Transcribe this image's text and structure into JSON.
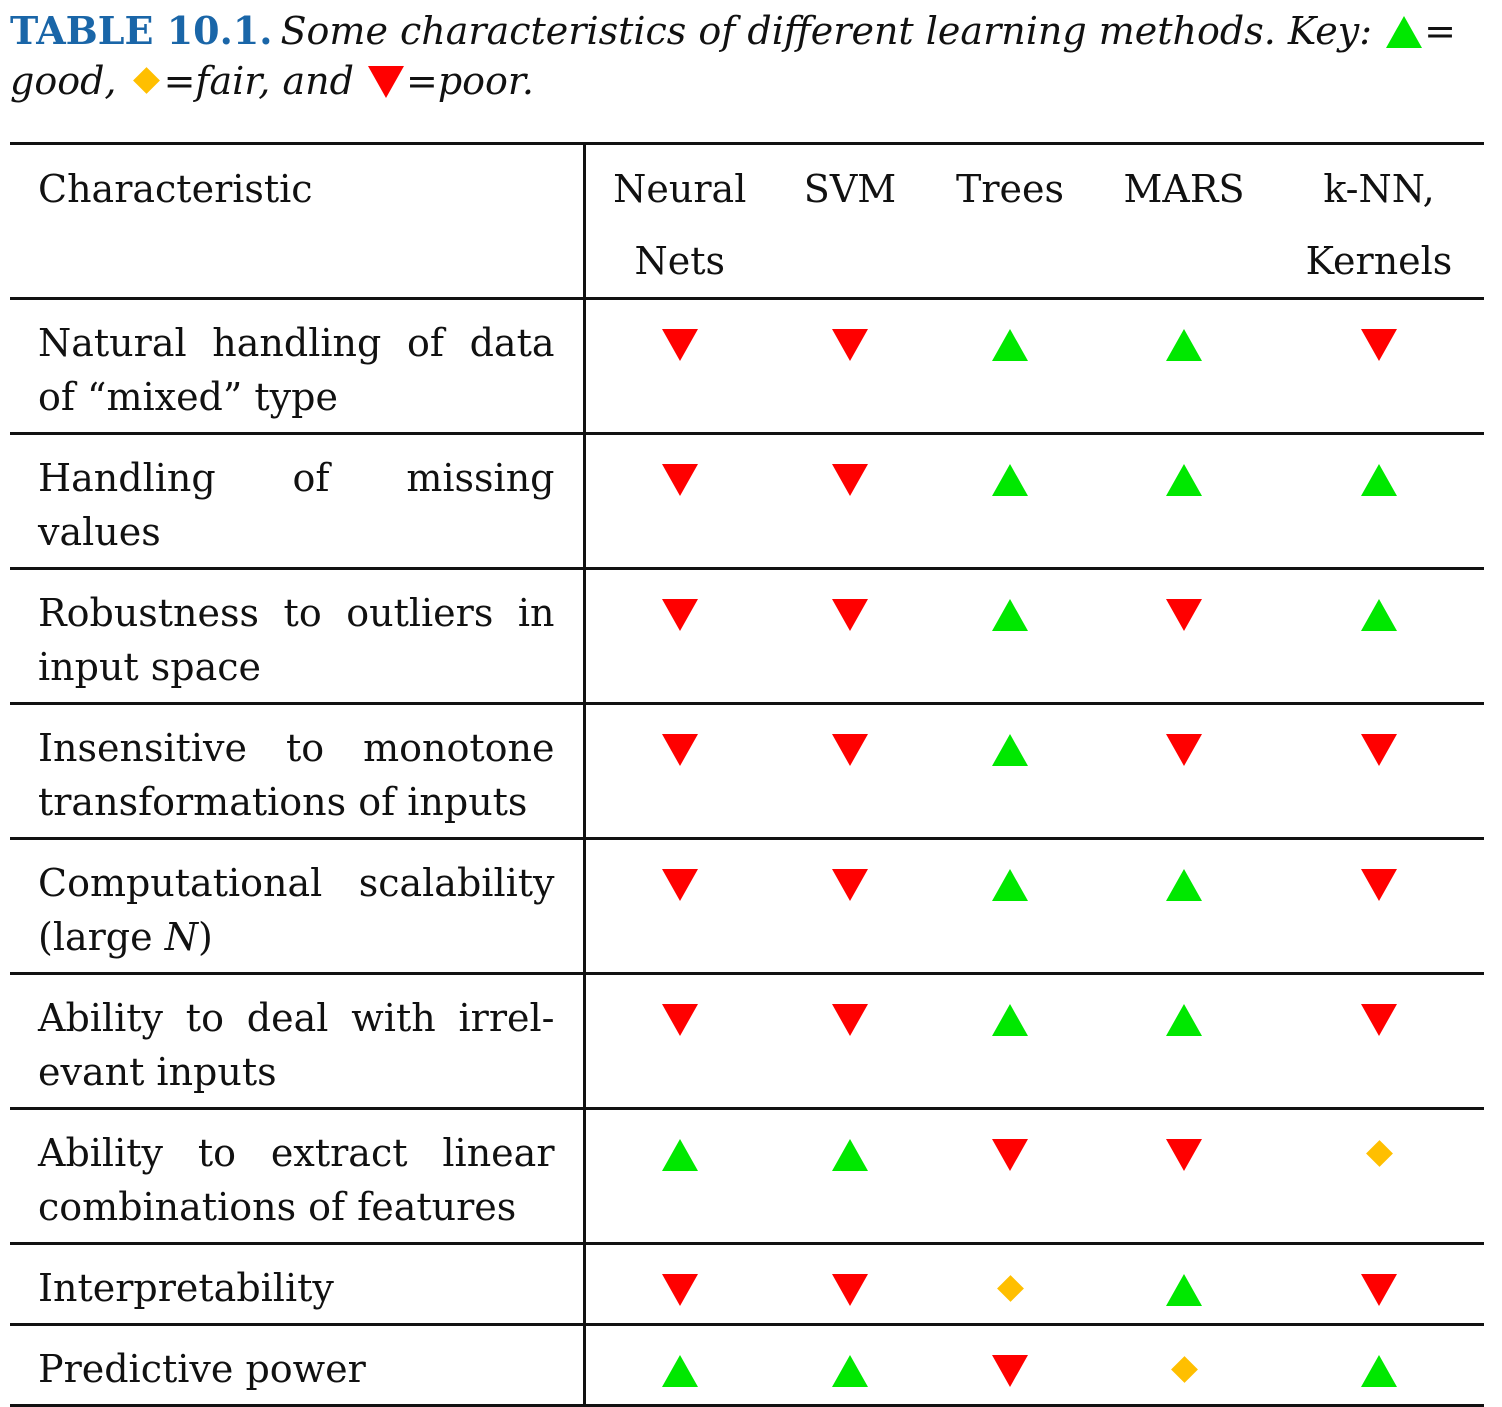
{
  "caption": {
    "label": "TABLE 10.1.",
    "text_before_key": "Some characteristics of different learning methods. Key:",
    "good_text": "= good,",
    "fair_text": "=fair, and",
    "poor_text": "=poor."
  },
  "key": {
    "good": {
      "icon": "triangle-up-icon",
      "color": "#00e800"
    },
    "fair": {
      "icon": "diamond-icon",
      "color": "#ffbf00"
    },
    "poor": {
      "icon": "triangle-down-icon",
      "color": "#ff0000"
    }
  },
  "table": {
    "headers": {
      "characteristic": "Characteristic",
      "methods": [
        {
          "line1": "Neural",
          "line2": "Nets"
        },
        {
          "line1": "SVM",
          "line2": ""
        },
        {
          "line1": "Trees",
          "line2": ""
        },
        {
          "line1": "MARS",
          "line2": ""
        },
        {
          "line1": "k-NN,",
          "line2": "Kernels"
        }
      ]
    },
    "rows": [
      {
        "characteristic": "Natural handling of data of “mixed” type",
        "ratings": [
          "poor",
          "poor",
          "good",
          "good",
          "poor"
        ]
      },
      {
        "characteristic": "Handling of missing values",
        "ratings": [
          "poor",
          "poor",
          "good",
          "good",
          "good"
        ]
      },
      {
        "characteristic": "Robustness to outliers in input space",
        "ratings": [
          "poor",
          "poor",
          "good",
          "poor",
          "good"
        ]
      },
      {
        "characteristic": "Insensitive to monotone transformations of inputs",
        "ratings": [
          "poor",
          "poor",
          "good",
          "poor",
          "poor"
        ]
      },
      {
        "characteristic_prefix": "Computational scalability (large ",
        "characteristic_var": "N",
        "characteristic_suffix": ")",
        "ratings": [
          "poor",
          "poor",
          "good",
          "good",
          "poor"
        ]
      },
      {
        "characteristic": "Ability to deal with irrel-evant inputs",
        "ratings": [
          "poor",
          "poor",
          "good",
          "good",
          "poor"
        ]
      },
      {
        "characteristic": "Ability to extract linear combinations of features",
        "ratings": [
          "good",
          "good",
          "poor",
          "poor",
          "fair"
        ]
      },
      {
        "characteristic": "Interpretability",
        "ratings": [
          "poor",
          "poor",
          "fair",
          "good",
          "poor"
        ]
      },
      {
        "characteristic": "Predictive power",
        "ratings": [
          "good",
          "good",
          "poor",
          "fair",
          "good"
        ]
      }
    ]
  }
}
